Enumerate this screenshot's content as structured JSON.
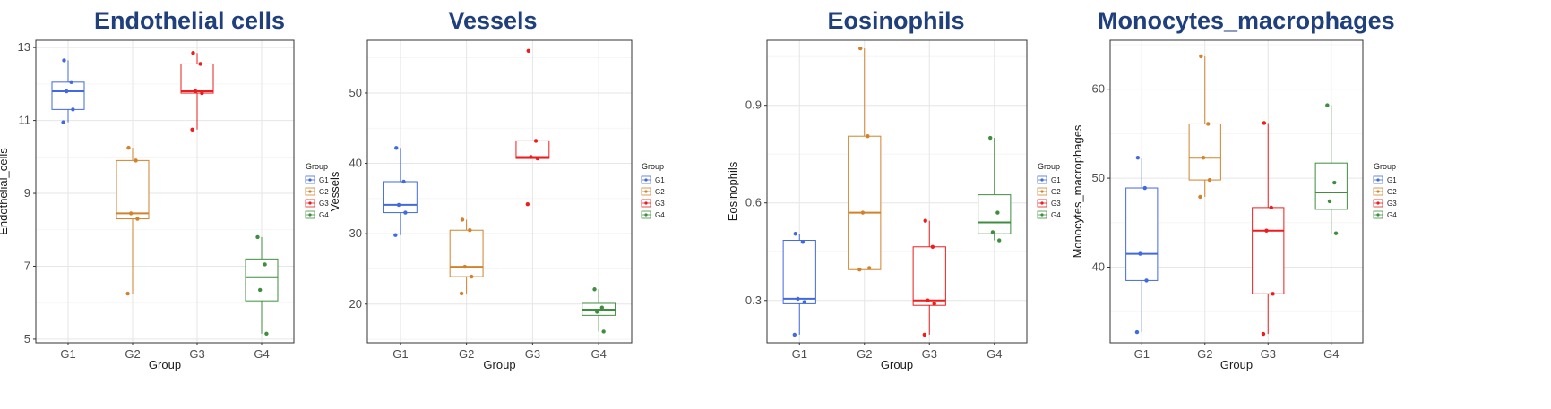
{
  "colors": {
    "G1": "#4169e1",
    "G2": "#d2822d",
    "G3": "#ee1c1c",
    "G4": "#3f8e3f"
  },
  "chart_data": [
    {
      "type": "boxplot",
      "title": "Endothelial cells",
      "xlabel": "Group",
      "ylabel": "Endothelial_cells",
      "ylim": [
        4.9,
        13.2
      ],
      "yticks": [
        5,
        7,
        9,
        11,
        13
      ],
      "categories": [
        "G1",
        "G2",
        "G3",
        "G4"
      ],
      "legend": {
        "title": "Group",
        "entries": [
          "G1",
          "G2",
          "G3",
          "G4"
        ],
        "position": "right"
      },
      "grid": true,
      "boxes": [
        {
          "group": "G1",
          "min": 10.95,
          "q1": 11.3,
          "median": 11.8,
          "q3": 12.05,
          "max": 12.65
        },
        {
          "group": "G2",
          "min": 6.25,
          "q1": 8.3,
          "median": 8.45,
          "q3": 9.9,
          "max": 10.25
        },
        {
          "group": "G3",
          "min": 10.75,
          "q1": 11.75,
          "median": 11.8,
          "q3": 12.55,
          "max": 12.85
        },
        {
          "group": "G4",
          "min": 5.15,
          "q1": 6.05,
          "median": 6.7,
          "q3": 7.2,
          "max": 7.8
        }
      ],
      "points": [
        {
          "group": "G1",
          "values": [
            12.65,
            12.05,
            11.8,
            11.3,
            10.95
          ]
        },
        {
          "group": "G2",
          "values": [
            10.25,
            9.9,
            8.45,
            8.3,
            6.25
          ]
        },
        {
          "group": "G3",
          "values": [
            12.85,
            12.55,
            11.8,
            11.75,
            10.75
          ]
        },
        {
          "group": "G4",
          "values": [
            7.8,
            7.05,
            6.35,
            5.15
          ]
        }
      ]
    },
    {
      "type": "boxplot",
      "title": "Vessels",
      "xlabel": "Group",
      "ylabel": "Vessels",
      "ylim": [
        14.5,
        57.5
      ],
      "yticks": [
        20,
        30,
        40,
        50
      ],
      "categories": [
        "G1",
        "G2",
        "G3",
        "G4"
      ],
      "legend": {
        "title": "Group",
        "entries": [
          "G1",
          "G2",
          "G3",
          "G4"
        ],
        "position": "right"
      },
      "grid": true,
      "boxes": [
        {
          "group": "G1",
          "min": 29.8,
          "q1": 33.0,
          "median": 34.1,
          "q3": 37.4,
          "max": 42.2
        },
        {
          "group": "G2",
          "min": 21.5,
          "q1": 23.9,
          "median": 25.3,
          "q3": 30.5,
          "max": 32.0
        },
        {
          "group": "G3",
          "min": 40.7,
          "q1": 40.7,
          "median": 40.9,
          "q3": 43.2,
          "max": 43.2
        },
        {
          "group": "G4",
          "min": 16.1,
          "q1": 18.4,
          "median": 19.2,
          "q3": 20.1,
          "max": 22.1
        }
      ],
      "points": [
        {
          "group": "G1",
          "values": [
            42.2,
            37.4,
            34.1,
            33.0,
            29.8
          ]
        },
        {
          "group": "G2",
          "values": [
            32.0,
            30.5,
            25.3,
            23.9,
            21.5
          ]
        },
        {
          "group": "G3",
          "values": [
            56.0,
            43.2,
            40.9,
            40.7,
            34.2
          ]
        },
        {
          "group": "G4",
          "values": [
            22.1,
            19.5,
            18.9,
            16.1
          ]
        }
      ]
    },
    {
      "type": "boxplot",
      "title": "Eosinophils",
      "xlabel": "Group",
      "ylabel": "Eosinophils",
      "ylim": [
        0.17,
        1.1
      ],
      "yticks": [
        0.3,
        0.6,
        0.9
      ],
      "categories": [
        "G1",
        "G2",
        "G3",
        "G4"
      ],
      "legend": {
        "title": "Group",
        "entries": [
          "G1",
          "G2",
          "G3",
          "G4"
        ],
        "position": "right"
      },
      "grid": true,
      "boxes": [
        {
          "group": "G1",
          "min": 0.195,
          "q1": 0.29,
          "median": 0.305,
          "q3": 0.485,
          "max": 0.505
        },
        {
          "group": "G2",
          "min": 0.395,
          "q1": 0.395,
          "median": 0.57,
          "q3": 0.805,
          "max": 1.075
        },
        {
          "group": "G3",
          "min": 0.195,
          "q1": 0.285,
          "median": 0.3,
          "q3": 0.465,
          "max": 0.545
        },
        {
          "group": "G4",
          "min": 0.485,
          "q1": 0.505,
          "median": 0.54,
          "q3": 0.625,
          "max": 0.8
        }
      ],
      "points": [
        {
          "group": "G1",
          "values": [
            0.505,
            0.48,
            0.305,
            0.295,
            0.195
          ]
        },
        {
          "group": "G2",
          "values": [
            1.075,
            0.805,
            0.57,
            0.4,
            0.395
          ]
        },
        {
          "group": "G3",
          "values": [
            0.545,
            0.465,
            0.3,
            0.29,
            0.195
          ]
        },
        {
          "group": "G4",
          "values": [
            0.8,
            0.57,
            0.51,
            0.485
          ]
        }
      ]
    },
    {
      "type": "boxplot",
      "title": "Monocytes_macrophages",
      "xlabel": "Group",
      "ylabel": "Monocytes_macrophages",
      "ylim": [
        31.5,
        65.5
      ],
      "yticks": [
        40,
        50,
        60
      ],
      "categories": [
        "G1",
        "G2",
        "G3",
        "G4"
      ],
      "legend": {
        "title": "Group",
        "entries": [
          "G1",
          "G2",
          "G3",
          "G4"
        ],
        "position": "right"
      },
      "grid": true,
      "boxes": [
        {
          "group": "G1",
          "min": 32.7,
          "q1": 38.5,
          "median": 41.5,
          "q3": 48.9,
          "max": 52.3
        },
        {
          "group": "G2",
          "min": 47.9,
          "q1": 49.8,
          "median": 52.3,
          "q3": 56.1,
          "max": 63.7
        },
        {
          "group": "G3",
          "min": 32.5,
          "q1": 37.0,
          "median": 44.1,
          "q3": 46.7,
          "max": 56.2
        },
        {
          "group": "G4",
          "min": 43.8,
          "q1": 46.5,
          "median": 48.4,
          "q3": 51.7,
          "max": 58.2
        }
      ],
      "points": [
        {
          "group": "G1",
          "values": [
            52.3,
            48.9,
            41.5,
            38.5,
            32.7
          ]
        },
        {
          "group": "G2",
          "values": [
            63.7,
            56.1,
            52.3,
            49.8,
            47.9
          ]
        },
        {
          "group": "G3",
          "values": [
            56.2,
            46.7,
            44.1,
            37.0,
            32.5
          ]
        },
        {
          "group": "G4",
          "values": [
            58.2,
            49.5,
            47.4,
            43.8
          ]
        }
      ]
    }
  ]
}
